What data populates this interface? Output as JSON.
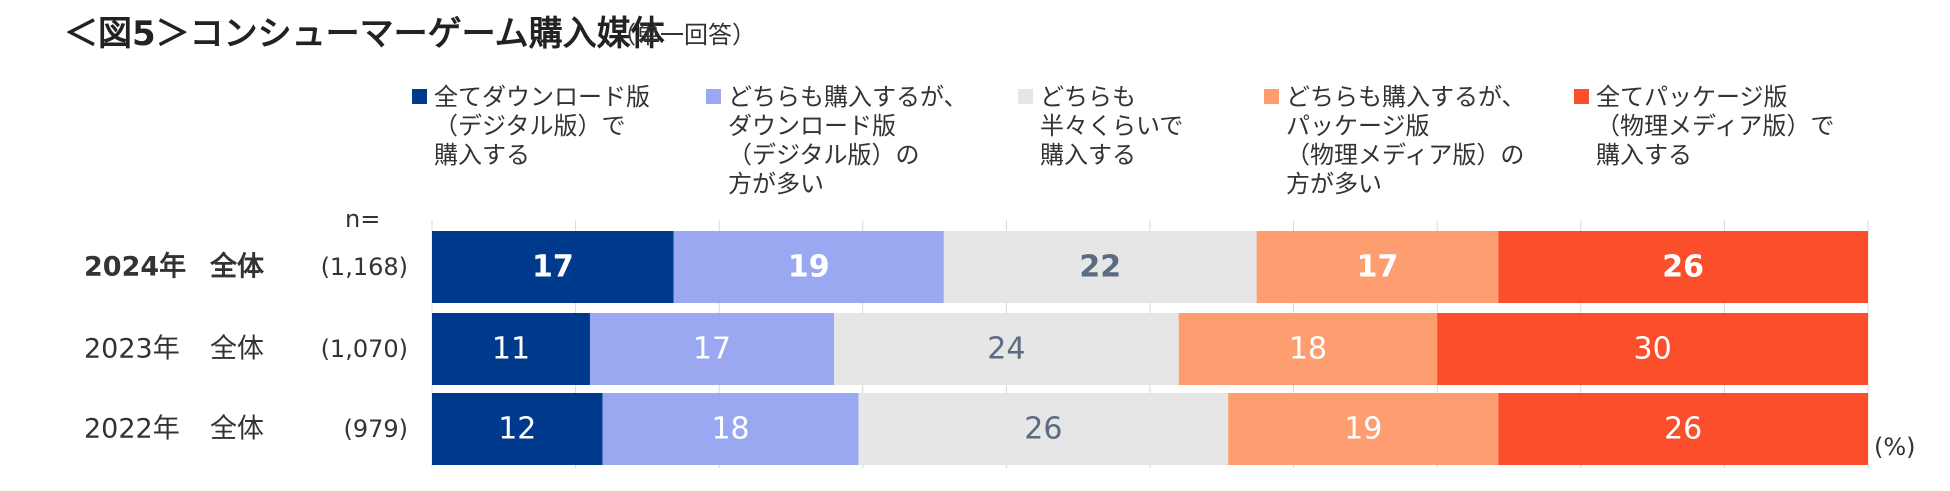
{
  "title": "＜図5＞コンシューマーゲーム購入媒体",
  "subtitle": "（単一回答）",
  "n_header": "n=",
  "unit": "(%)",
  "chart_data": {
    "type": "bar",
    "orientation": "horizontal",
    "stacked": true,
    "normalized": "100%",
    "categories": [
      "2024年  全体",
      "2023年  全体",
      "2022年  全体"
    ],
    "n": [
      "(1,168)",
      "(1,070)",
      "(979)"
    ],
    "highlight_row": 0,
    "xlim": [
      0,
      100
    ],
    "grid": true,
    "legend_position": "top",
    "series": [
      {
        "name": "全てダウンロード版（デジタル版）で購入する",
        "legend_lines": [
          "全てダウンロード版",
          "（デジタル版）で",
          "購入する"
        ],
        "values": [
          17,
          11,
          12
        ],
        "color": "#003a8c",
        "label_color": "#ffffff"
      },
      {
        "name": "どちらも購入するが、ダウンロード版（デジタル版）の方が多い",
        "legend_lines": [
          "どちらも購入するが、",
          "ダウンロード版",
          "（デジタル版）の",
          "方が多い"
        ],
        "values": [
          19,
          17,
          18
        ],
        "color": "#9aa8f2",
        "label_color": "#ffffff"
      },
      {
        "name": "どちらも半々くらいで購入する",
        "legend_lines": [
          "どちらも",
          "半々くらいで",
          "購入する"
        ],
        "values": [
          22,
          24,
          26
        ],
        "color": "#e6e6e6",
        "label_color": "#5a6b82"
      },
      {
        "name": "どちらも購入するが、パッケージ版（物理メディア版）の方が多い",
        "legend_lines": [
          "どちらも購入するが、",
          "パッケージ版",
          "（物理メディア版）の",
          "方が多い"
        ],
        "values": [
          17,
          18,
          19
        ],
        "color": "#fd9d70",
        "label_color": "#ffffff"
      },
      {
        "name": "全てパッケージ版（物理メディア版）で購入する",
        "legend_lines": [
          "全てパッケージ版",
          "（物理メディア版）で",
          "購入する"
        ],
        "values": [
          26,
          30,
          26
        ],
        "color": "#fb4e2b",
        "label_color": "#ffffff"
      }
    ]
  }
}
